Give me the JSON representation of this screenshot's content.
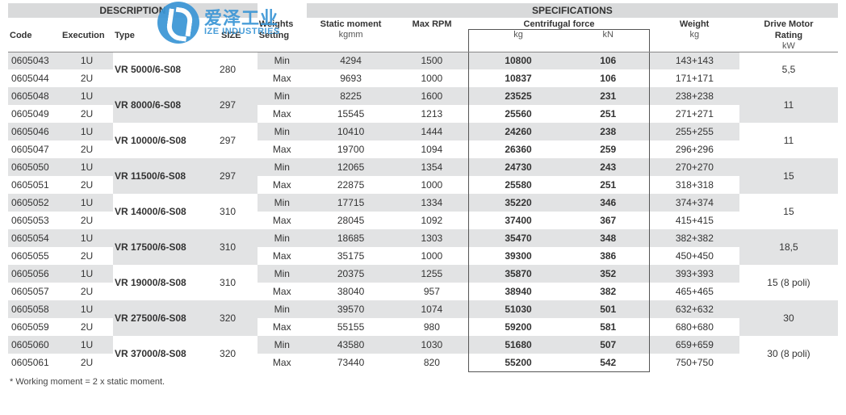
{
  "headers": {
    "description": "DESCRIPTION",
    "specifications": "SPECIFICATIONS",
    "code": "Code",
    "execution": "Execution",
    "type": "Type",
    "size": "SIZE",
    "weights_setting_l1": "Weights",
    "weights_setting_l2": "Setting",
    "static_moment": "Static moment",
    "static_moment_unit": "kgmm",
    "max_rpm": "Max RPM",
    "centrifugal_force": "Centrifugal force",
    "cf_unit_kg": "kg",
    "cf_unit_kn": "kN",
    "weight": "Weight",
    "weight_unit": "kg",
    "drive_motor_l1": "Drive Motor",
    "drive_motor_l2": "Rating",
    "drive_motor_unit": "kW"
  },
  "watermark": {
    "cn": "爱泽工业",
    "en": "IZE INDUSTRIES"
  },
  "footnote": "* Working moment = 2 x static moment.",
  "groups": [
    {
      "type": "VR 5000/6-S08",
      "size": "280",
      "motor": "5,5",
      "shade": "g",
      "rows": [
        {
          "code": "0605043",
          "exec": "1U",
          "ws": "Min",
          "sm": "4294",
          "rpm": "1500",
          "cfkg": "10800",
          "cfkn": "106",
          "wt": "143+143"
        },
        {
          "code": "0605044",
          "exec": "2U",
          "ws": "Max",
          "sm": "9693",
          "rpm": "1000",
          "cfkg": "10837",
          "cfkn": "106",
          "wt": "171+171"
        }
      ]
    },
    {
      "type": "VR 8000/6-S08",
      "size": "297",
      "motor": "11",
      "shade": "w",
      "rows": [
        {
          "code": "0605048",
          "exec": "1U",
          "ws": "Min",
          "sm": "8225",
          "rpm": "1600",
          "cfkg": "23525",
          "cfkn": "231",
          "wt": "238+238"
        },
        {
          "code": "0605049",
          "exec": "2U",
          "ws": "Max",
          "sm": "15545",
          "rpm": "1213",
          "cfkg": "25560",
          "cfkn": "251",
          "wt": "271+271"
        }
      ]
    },
    {
      "type": "VR 10000/6-S08",
      "size": "297",
      "motor": "11",
      "shade": "g",
      "rows": [
        {
          "code": "0605046",
          "exec": "1U",
          "ws": "Min",
          "sm": "10410",
          "rpm": "1444",
          "cfkg": "24260",
          "cfkn": "238",
          "wt": "255+255"
        },
        {
          "code": "0605047",
          "exec": "2U",
          "ws": "Max",
          "sm": "19700",
          "rpm": "1094",
          "cfkg": "26360",
          "cfkn": "259",
          "wt": "296+296"
        }
      ]
    },
    {
      "type": "VR 11500/6-S08",
      "size": "297",
      "motor": "15",
      "shade": "w",
      "rows": [
        {
          "code": "0605050",
          "exec": "1U",
          "ws": "Min",
          "sm": "12065",
          "rpm": "1354",
          "cfkg": "24730",
          "cfkn": "243",
          "wt": "270+270"
        },
        {
          "code": "0605051",
          "exec": "2U",
          "ws": "Max",
          "sm": "22875",
          "rpm": "1000",
          "cfkg": "25580",
          "cfkn": "251",
          "wt": "318+318"
        }
      ]
    },
    {
      "type": "VR 14000/6-S08",
      "size": "310",
      "motor": "15",
      "shade": "g",
      "rows": [
        {
          "code": "0605052",
          "exec": "1U",
          "ws": "Min",
          "sm": "17715",
          "rpm": "1334",
          "cfkg": "35220",
          "cfkn": "346",
          "wt": "374+374"
        },
        {
          "code": "0605053",
          "exec": "2U",
          "ws": "Max",
          "sm": "28045",
          "rpm": "1092",
          "cfkg": "37400",
          "cfkn": "367",
          "wt": "415+415"
        }
      ]
    },
    {
      "type": "VR 17500/6-S08",
      "size": "310",
      "motor": "18,5",
      "shade": "w",
      "rows": [
        {
          "code": "0605054",
          "exec": "1U",
          "ws": "Min",
          "sm": "18685",
          "rpm": "1303",
          "cfkg": "35470",
          "cfkn": "348",
          "wt": "382+382"
        },
        {
          "code": "0605055",
          "exec": "2U",
          "ws": "Max",
          "sm": "35175",
          "rpm": "1000",
          "cfkg": "39300",
          "cfkn": "386",
          "wt": "450+450"
        }
      ]
    },
    {
      "type": "VR 19000/8-S08",
      "size": "310",
      "motor": "15 (8 poli)",
      "shade": "g",
      "rows": [
        {
          "code": "0605056",
          "exec": "1U",
          "ws": "Min",
          "sm": "20375",
          "rpm": "1255",
          "cfkg": "35870",
          "cfkn": "352",
          "wt": "393+393"
        },
        {
          "code": "0605057",
          "exec": "2U",
          "ws": "Max",
          "sm": "38040",
          "rpm": "957",
          "cfkg": "38940",
          "cfkn": "382",
          "wt": "465+465"
        }
      ]
    },
    {
      "type": "VR 27500/6-S08",
      "size": "320",
      "motor": "30",
      "shade": "w",
      "rows": [
        {
          "code": "0605058",
          "exec": "1U",
          "ws": "Min",
          "sm": "39570",
          "rpm": "1074",
          "cfkg": "51030",
          "cfkn": "501",
          "wt": "632+632"
        },
        {
          "code": "0605059",
          "exec": "2U",
          "ws": "Max",
          "sm": "55155",
          "rpm": "980",
          "cfkg": "59200",
          "cfkn": "581",
          "wt": "680+680"
        }
      ]
    },
    {
      "type": "VR 37000/8-S08",
      "size": "320",
      "motor": "30 (8 poli)",
      "shade": "g",
      "rows": [
        {
          "code": "0605060",
          "exec": "1U",
          "ws": "Min",
          "sm": "43580",
          "rpm": "1030",
          "cfkg": "51680",
          "cfkn": "507",
          "wt": "659+659"
        },
        {
          "code": "0605061",
          "exec": "2U",
          "ws": "Max",
          "sm": "73440",
          "rpm": "820",
          "cfkg": "55200",
          "cfkn": "542",
          "wt": "750+750"
        }
      ]
    }
  ],
  "style": {
    "row_bg_grey": "#e2e3e4",
    "row_bg_white": "#ffffff",
    "header_bg": "#d9dadb",
    "box_border": "#555555",
    "accent": "#3b96d6"
  }
}
